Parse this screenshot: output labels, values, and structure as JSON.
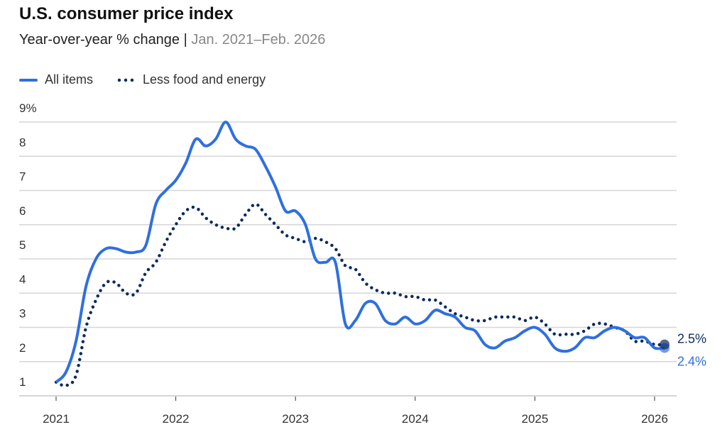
{
  "chart_data": {
    "type": "line",
    "title": "U.S. consumer price index",
    "subtitle": "Year-over-year % change",
    "subtitle_range": "Jan. 2021–Feb. 2026",
    "x_start": "2021-01",
    "x_end": "2026-02",
    "x_ticks": [
      "2021",
      "2022",
      "2023",
      "2024",
      "2025",
      "2026"
    ],
    "y_ticks": [
      "1",
      "2",
      "3",
      "4",
      "5",
      "6",
      "7",
      "8",
      "9%"
    ],
    "ylim": [
      1,
      9
    ],
    "grid": true,
    "legend_placement": "top-left",
    "series": [
      {
        "name": "All items",
        "color": "#2f6fe0",
        "style": "solid",
        "end_label": "2.4%",
        "values": [
          1.4,
          1.7,
          2.6,
          4.2,
          5.0,
          5.3,
          5.3,
          5.2,
          5.2,
          5.4,
          6.6,
          7.0,
          7.3,
          7.8,
          8.5,
          8.3,
          8.5,
          9.0,
          8.5,
          8.3,
          8.2,
          7.7,
          7.1,
          6.4,
          6.4,
          6.0,
          5.0,
          4.9,
          4.9,
          3.1,
          3.2,
          3.7,
          3.7,
          3.2,
          3.1,
          3.3,
          3.1,
          3.2,
          3.5,
          3.4,
          3.3,
          3.0,
          2.9,
          2.5,
          2.4,
          2.6,
          2.7,
          2.9,
          3.0,
          2.8,
          2.4,
          2.3,
          2.4,
          2.7,
          2.7,
          2.9,
          3.0,
          2.9,
          2.7,
          2.7,
          2.4,
          2.4
        ]
      },
      {
        "name": "Less food and energy",
        "color": "#0d2a5e",
        "style": "dotted",
        "end_label": "2.5%",
        "values": [
          1.4,
          1.3,
          1.6,
          3.0,
          3.8,
          4.3,
          4.3,
          4.0,
          4.0,
          4.6,
          4.9,
          5.5,
          6.0,
          6.4,
          6.5,
          6.2,
          6.0,
          5.9,
          5.9,
          6.3,
          6.6,
          6.3,
          6.0,
          5.7,
          5.6,
          5.5,
          5.6,
          5.5,
          5.3,
          4.8,
          4.7,
          4.3,
          4.1,
          4.0,
          4.0,
          3.9,
          3.9,
          3.8,
          3.8,
          3.6,
          3.4,
          3.3,
          3.2,
          3.2,
          3.3,
          3.3,
          3.3,
          3.2,
          3.3,
          3.1,
          2.8,
          2.8,
          2.8,
          2.9,
          3.1,
          3.1,
          3.0,
          2.9,
          2.6,
          2.6,
          2.5,
          2.5
        ]
      }
    ]
  }
}
